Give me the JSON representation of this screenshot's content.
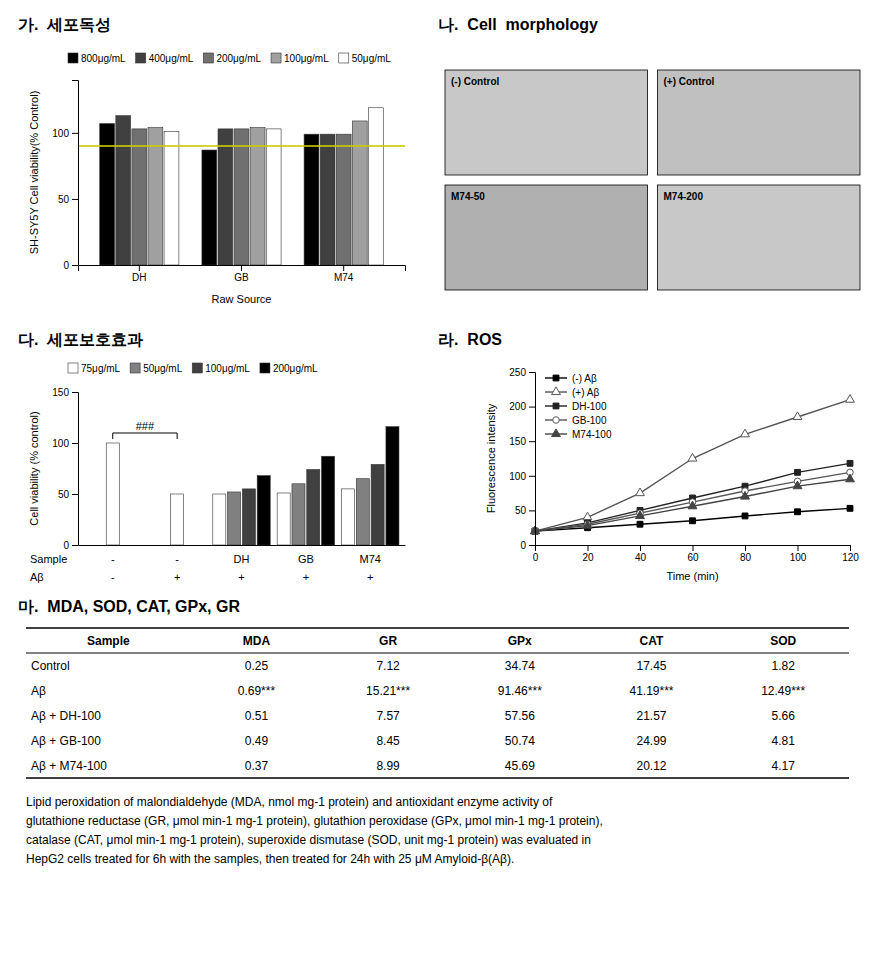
{
  "chart_data": [
    {
      "type": "bar",
      "title": "가.  세포독성",
      "categories": [
        "DH",
        "GB",
        "M74"
      ],
      "series": [
        {
          "name": "800μg/mL",
          "color": "#000000",
          "values": [
            107,
            87,
            99
          ]
        },
        {
          "name": "400μg/mL",
          "color": "#404040",
          "values": [
            113,
            103,
            99
          ]
        },
        {
          "name": "200μg/mL",
          "color": "#707070",
          "values": [
            103,
            103,
            99
          ]
        },
        {
          "name": "100μg/mL",
          "color": "#a0a0a0",
          "values": [
            104,
            104,
            109
          ]
        },
        {
          "name": "50μg/mL",
          "color": "#ffffff",
          "values": [
            101,
            103,
            119
          ]
        }
      ],
      "x_label": "Raw Source",
      "y_label": "SH-SY5Y Cell viability(% Control)",
      "ylim": [
        0,
        140
      ],
      "yticks": [
        0,
        50,
        100
      ],
      "reference_line": {
        "value": 90,
        "color": "#cccc00"
      },
      "legend": "upper left"
    },
    {
      "type": "image_grid",
      "title": "나.  Cell  morphology",
      "labels": [
        "(-) Control",
        "(+) Control",
        "M74-50",
        "M74-200"
      ],
      "colors": [
        "#c8c8c8",
        "#c0c0c0",
        "#b0b0b0",
        "#c8c8c8"
      ]
    },
    {
      "type": "bar",
      "title": "다.  세포보호효과",
      "y_label": "Cell viability (% control)",
      "ylim": [
        0,
        150
      ],
      "yticks": [
        0,
        50,
        100,
        150
      ],
      "label_rows": [
        {
          "label": "Sample",
          "values": [
            "-",
            "-",
            "DH",
            "GB",
            "M74"
          ]
        },
        {
          "label": "Aβ",
          "values": [
            "-",
            "+",
            "+",
            "+",
            "+"
          ]
        }
      ],
      "control": {
        "color": "#ffffff",
        "values": [
          100,
          50,
          null,
          null,
          null
        ]
      },
      "series": [
        {
          "name": "75μg/mL",
          "color": "#ffffff",
          "values": [
            null,
            null,
            50,
            51,
            55
          ]
        },
        {
          "name": "50μg/mL",
          "color": "#808080",
          "values": [
            null,
            null,
            52,
            60,
            65
          ]
        },
        {
          "name": "100μg/mL",
          "color": "#404040",
          "values": [
            null,
            null,
            55,
            74,
            79
          ]
        },
        {
          "name": "200μg/mL",
          "color": "#000000",
          "values": [
            null,
            null,
            68,
            87,
            116
          ]
        }
      ],
      "annotations": [
        {
          "text": "###",
          "between": [
            0,
            1
          ]
        }
      ],
      "legend": "upper left",
      "tick_labels": "y"
    },
    {
      "type": "line",
      "title": "라.  ROS",
      "x_label": "Time (min)",
      "y_label": "Fluorescence intensity",
      "xlim": [
        0,
        120
      ],
      "ylim": [
        0,
        250
      ],
      "xticks": [
        0,
        20,
        40,
        60,
        80,
        100,
        120
      ],
      "yticks": [
        0,
        50,
        100,
        150,
        200,
        250
      ],
      "series": [
        {
          "name": "(-) Aβ",
          "color": "#000000",
          "marker": "square",
          "line_style": "solid",
          "x": [
            0,
            20,
            40,
            60,
            80,
            100,
            120
          ],
          "values": [
            20,
            25,
            30,
            35,
            42,
            48,
            53
          ]
        },
        {
          "name": "(+) Aβ",
          "color": "#555555",
          "marker": "triangle-open",
          "line_style": "solid",
          "x": [
            0,
            20,
            40,
            60,
            80,
            100,
            120
          ],
          "values": [
            20,
            40,
            75,
            125,
            160,
            185,
            210
          ]
        },
        {
          "name": "DH-100",
          "color": "#222222",
          "marker": "square",
          "line_style": "solid",
          "x": [
            0,
            20,
            40,
            60,
            80,
            100,
            120
          ],
          "values": [
            20,
            32,
            50,
            68,
            85,
            105,
            118
          ]
        },
        {
          "name": "GB-100",
          "color": "#555555",
          "marker": "circle-open",
          "line_style": "solid",
          "x": [
            0,
            20,
            40,
            60,
            80,
            100,
            120
          ],
          "values": [
            20,
            30,
            46,
            62,
            78,
            92,
            105
          ]
        },
        {
          "name": "M74-100",
          "color": "#444444",
          "marker": "triangle",
          "line_style": "solid",
          "x": [
            0,
            20,
            40,
            60,
            80,
            100,
            120
          ],
          "values": [
            20,
            28,
            42,
            56,
            70,
            85,
            95
          ]
        }
      ],
      "legend": "upper left"
    },
    {
      "type": "table",
      "title": "마.  MDA, SOD, CAT, GPx, GR",
      "headers": [
        "Sample",
        "MDA",
        "GR",
        "GPx",
        "CAT",
        "SOD"
      ],
      "rows": [
        [
          "Control",
          "0.25",
          "7.12",
          "34.74",
          "17.45",
          "1.82"
        ],
        [
          "Aβ",
          "0.69***",
          "15.21***",
          "91.46***",
          "41.19***",
          "12.49***"
        ],
        [
          "Aβ + DH-100",
          "0.51",
          "7.57",
          "57.56",
          "21.57",
          "5.66"
        ],
        [
          "Aβ + GB-100",
          "0.49",
          "8.45",
          "50.74",
          "24.99",
          "4.81"
        ],
        [
          "Aβ + M74-100",
          "0.37",
          "8.99",
          "45.69",
          "20.12",
          "4.17"
        ]
      ],
      "caption": [
        "Lipid peroxidation of malondialdehyde (MDA, nmol mg-1 protein) and antioxidant enzyme activity of",
        "glutathione reductase (GR, μmol min-1 mg-1 protein), glutathion peroxidase (GPx, μmol min-1 mg-1 protein),",
        "catalase (CAT, μmol min-1 mg-1 protein), superoxide dismutase (SOD, unit mg-1 protein) was evaluated in",
        "HepG2 cells treated for 6h with the samples, then treated for 24h with 25 μM Amyloid-β(Aβ)."
      ]
    }
  ]
}
